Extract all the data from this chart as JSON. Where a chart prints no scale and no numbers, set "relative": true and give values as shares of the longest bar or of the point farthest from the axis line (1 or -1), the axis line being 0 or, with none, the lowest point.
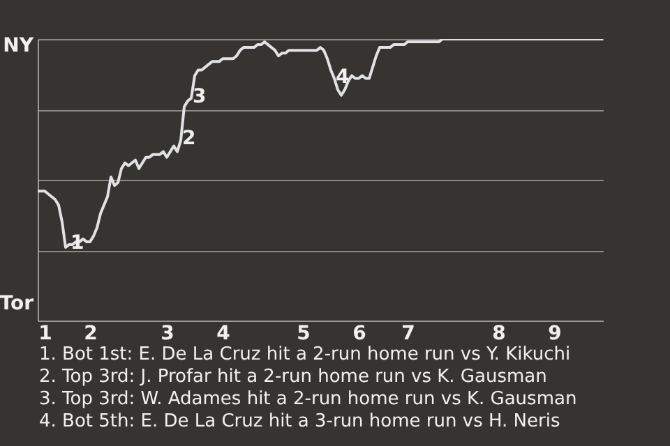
{
  "chart_data": {
    "type": "line",
    "relative": true,
    "categories": [
      null,
      null,
      "1",
      null,
      null,
      null,
      null,
      null,
      null,
      null,
      null,
      null,
      null,
      null,
      null,
      "2",
      null,
      null,
      null,
      null,
      null,
      null,
      null,
      null,
      null,
      null,
      null,
      null,
      null,
      null,
      null,
      null,
      null,
      null,
      null,
      null,
      null,
      "3",
      null,
      null,
      null,
      null,
      null,
      null,
      null,
      null,
      null,
      null,
      null,
      null,
      null,
      null,
      null,
      "4",
      null,
      null,
      null,
      null,
      null,
      null,
      null,
      null,
      null,
      null,
      null,
      null,
      null,
      null,
      null,
      null,
      null,
      null,
      null,
      null,
      null,
      null,
      "5",
      null,
      null,
      null,
      null,
      null,
      null,
      null,
      null,
      null,
      null,
      null,
      null,
      null,
      null,
      null,
      "6",
      null,
      null,
      null,
      null,
      null,
      null,
      null,
      null,
      null,
      null,
      null,
      null,
      null,
      "7",
      null,
      null,
      null,
      null,
      null,
      null,
      null,
      null,
      null,
      null,
      null,
      null,
      null,
      null,
      null,
      null,
      null,
      null,
      null,
      null,
      null,
      null,
      null,
      null,
      null,
      "8",
      null,
      null,
      null,
      null,
      null,
      null,
      null,
      null,
      null,
      null,
      null,
      null,
      null,
      null,
      null,
      "9",
      null,
      null,
      null,
      null,
      null,
      null,
      null,
      null,
      null,
      null,
      null,
      null,
      null,
      null
    ],
    "series": [
      {
        "color": "#e0e2e3",
        "values": [
          0.46,
          0.46,
          0.46,
          0.45,
          0.44,
          0.43,
          0.41,
          0.35,
          0.26,
          0.27,
          0.27,
          0.28,
          0.28,
          0.29,
          0.28,
          0.28,
          0.3,
          0.33,
          0.38,
          0.41,
          0.44,
          0.51,
          0.48,
          0.49,
          0.54,
          0.56,
          0.55,
          0.56,
          0.57,
          0.54,
          0.56,
          0.58,
          0.58,
          0.59,
          0.59,
          0.59,
          0.6,
          0.58,
          0.6,
          0.62,
          0.6,
          0.64,
          0.76,
          0.78,
          0.79,
          0.87,
          0.89,
          0.89,
          0.9,
          0.91,
          0.92,
          0.92,
          0.92,
          0.93,
          0.93,
          0.93,
          0.93,
          0.94,
          0.96,
          0.97,
          0.97,
          0.97,
          0.97,
          0.98,
          0.98,
          0.99,
          0.98,
          0.97,
          0.96,
          0.94,
          0.95,
          0.95,
          0.96,
          0.96,
          0.96,
          0.96,
          0.96,
          0.96,
          0.96,
          0.96,
          0.96,
          0.97,
          0.96,
          0.93,
          0.89,
          0.86,
          0.82,
          0.8,
          0.82,
          0.85,
          0.87,
          0.86,
          0.86,
          0.87,
          0.86,
          0.86,
          0.9,
          0.94,
          0.97,
          0.97,
          0.97,
          0.97,
          0.98,
          0.98,
          0.98,
          0.98,
          0.99,
          0.99,
          0.99,
          0.99,
          0.99,
          0.99,
          0.99,
          0.99,
          0.99,
          0.99,
          1,
          1,
          1,
          1,
          1,
          1,
          1,
          1,
          1,
          1,
          1,
          1,
          1,
          1,
          1,
          1,
          1,
          1,
          1,
          1,
          1,
          1,
          1,
          1,
          1,
          1,
          1,
          1,
          1,
          1,
          1,
          1,
          1,
          1,
          1,
          1,
          1,
          1,
          1,
          1,
          1,
          1,
          1,
          1,
          1,
          1,
          1
        ]
      }
    ],
    "grid": "y",
    "annotations": [
      "NY",
      "Tor",
      {
        "text": "1",
        "y": 0.27
      },
      {
        "text": "2",
        "y": 0.64
      },
      {
        "text": "3",
        "y": 0.79
      },
      {
        "text": "4",
        "y": 0.86
      },
      "1. Bot 1st: E. De La Cruz hit a 2-run home run vs Y. Kikuchi",
      "2. Top 3rd: J. Profar hit a 2-run home run vs K. Gausman",
      "3. Top 3rd: W. Adames hit a 2-run home run vs K. Gausman",
      "4. Bot 5th: E. De La Cruz hit a 3-run home run vs H. Neris"
    ]
  }
}
